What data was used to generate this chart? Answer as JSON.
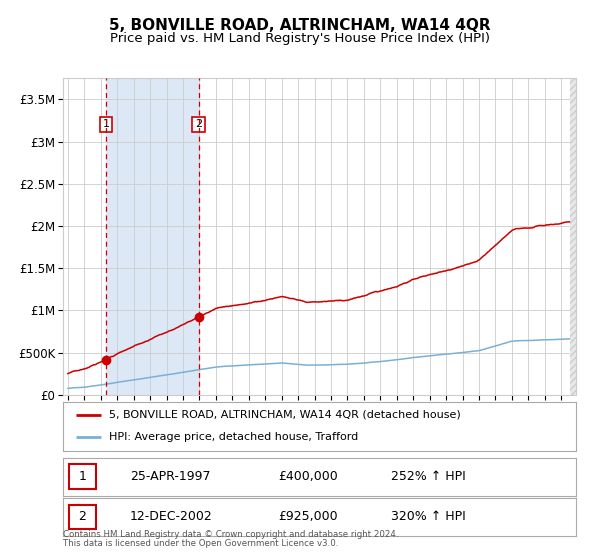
{
  "title": "5, BONVILLE ROAD, ALTRINCHAM, WA14 4QR",
  "subtitle": "Price paid vs. HM Land Registry's House Price Index (HPI)",
  "legend_line1": "5, BONVILLE ROAD, ALTRINCHAM, WA14 4QR (detached house)",
  "legend_line2": "HPI: Average price, detached house, Trafford",
  "transaction1_date": "25-APR-1997",
  "transaction1_price": 400000,
  "transaction1_hpi": "252% ↑ HPI",
  "transaction2_date": "12-DEC-2002",
  "transaction2_price": 925000,
  "transaction2_hpi": "320% ↑ HPI",
  "footer1": "Contains HM Land Registry data © Crown copyright and database right 2024.",
  "footer2": "This data is licensed under the Open Government Licence v3.0.",
  "red_color": "#cc0000",
  "blue_color": "#7ab0d4",
  "shade_color": "#dce8f5",
  "grid_color": "#cccccc",
  "background_color": "#ffffff",
  "border_color": "#aaaaaa",
  "title_fontsize": 11,
  "subtitle_fontsize": 9.5,
  "ylim_max": 3750000,
  "transaction1_year": 1997.31,
  "transaction2_year": 2002.95,
  "xmin": 1994.7,
  "xmax": 2025.9
}
